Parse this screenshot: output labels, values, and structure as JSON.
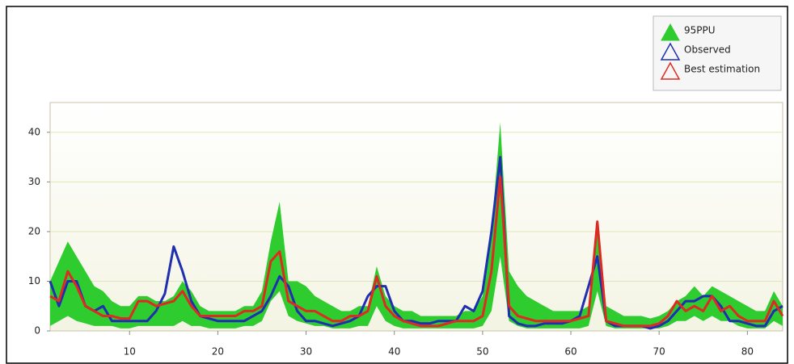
{
  "chart_data": {
    "type": "line",
    "x": [
      1,
      2,
      3,
      4,
      5,
      6,
      7,
      8,
      9,
      10,
      11,
      12,
      13,
      14,
      15,
      16,
      17,
      18,
      19,
      20,
      21,
      22,
      23,
      24,
      25,
      26,
      27,
      28,
      29,
      30,
      31,
      32,
      33,
      34,
      35,
      36,
      37,
      38,
      39,
      40,
      41,
      42,
      43,
      44,
      45,
      46,
      47,
      48,
      49,
      50,
      51,
      52,
      53,
      54,
      55,
      56,
      57,
      58,
      59,
      60,
      61,
      62,
      63,
      64,
      65,
      66,
      67,
      68,
      69,
      70,
      71,
      72,
      73,
      74,
      75,
      76,
      77,
      78,
      79,
      80,
      81,
      82,
      83,
      84
    ],
    "xlim": [
      1,
      84
    ],
    "xticks": [
      10,
      20,
      30,
      40,
      50,
      60,
      70,
      80
    ],
    "ylim": [
      0,
      46
    ],
    "yticks": [
      0,
      10,
      20,
      30,
      40
    ],
    "grid": true,
    "legend": "top-right",
    "series": [
      {
        "name": "95PPU",
        "color": "#2ecc2e",
        "upper": [
          10,
          14,
          18,
          15,
          12,
          9,
          8,
          6,
          5,
          5,
          7,
          7,
          6,
          6,
          7,
          10,
          8,
          5,
          4,
          4,
          4,
          4,
          5,
          5,
          8,
          18,
          26,
          10,
          10,
          9,
          7,
          6,
          5,
          4,
          4,
          5,
          5,
          13,
          7,
          5,
          4,
          4,
          3,
          3,
          3,
          3,
          3,
          4,
          4,
          7,
          20,
          42,
          12,
          9,
          7,
          6,
          5,
          4,
          4,
          4,
          4,
          5,
          22,
          5,
          4,
          3,
          3,
          3,
          2.5,
          3,
          4,
          6,
          7,
          9,
          7,
          9,
          8,
          7,
          6,
          5,
          4,
          4,
          8,
          5
        ],
        "lower": [
          1,
          2,
          3,
          2,
          1.5,
          1,
          1,
          1,
          0.5,
          0.5,
          1,
          1,
          1,
          1,
          1,
          2,
          1,
          1,
          0.5,
          0.5,
          0.5,
          0.5,
          1,
          1,
          2,
          6,
          8,
          3,
          2,
          1.5,
          1,
          1,
          0.5,
          0.5,
          0.5,
          1,
          1,
          5,
          2,
          1,
          0.5,
          0.5,
          0.5,
          0.5,
          0.5,
          0.5,
          0.5,
          0.5,
          0.5,
          1,
          4,
          15,
          2,
          1,
          0.5,
          0.5,
          0.5,
          0.5,
          0.5,
          0.5,
          0.5,
          1,
          8,
          1,
          0.5,
          0.5,
          0.5,
          0.5,
          0.5,
          0.5,
          1,
          2,
          2,
          3,
          2,
          3,
          2,
          2,
          1,
          0.5,
          0.5,
          0.5,
          2,
          1
        ]
      },
      {
        "name": "Observed",
        "color": "#1f2fb0",
        "values": [
          10,
          5,
          10,
          10,
          5,
          4,
          5,
          2,
          2,
          2,
          2,
          2,
          4,
          7.5,
          17,
          12,
          6,
          3,
          2.5,
          2,
          2,
          2,
          2,
          3,
          4,
          7,
          11,
          9,
          4,
          2,
          2,
          1.5,
          1,
          1.5,
          2,
          3,
          7,
          9,
          9,
          4,
          2,
          2,
          1.5,
          1.5,
          2,
          2,
          2,
          5,
          4,
          8,
          20,
          35,
          3,
          1.5,
          1,
          1,
          1.5,
          1.5,
          1.5,
          2,
          3,
          9,
          15,
          2,
          1,
          1,
          1,
          1,
          0.5,
          1,
          2,
          4,
          6,
          6,
          7,
          7,
          5,
          2,
          2,
          1.5,
          1,
          1,
          4,
          5
        ]
      },
      {
        "name": "Best estimation",
        "color": "#dd2a22",
        "values": [
          7,
          6,
          12,
          9,
          5,
          4,
          3,
          3,
          2.5,
          2.5,
          6,
          6,
          5,
          5.5,
          6,
          8,
          5,
          3,
          3,
          3,
          3,
          3,
          4,
          4,
          5,
          14,
          16,
          6,
          5,
          4,
          4,
          3,
          2,
          2,
          3,
          3,
          4,
          11,
          5,
          3,
          2,
          1.5,
          1,
          1,
          1,
          1.5,
          2,
          2,
          2,
          3,
          12,
          31,
          5,
          3,
          2.5,
          2,
          2,
          2,
          2,
          2,
          2.5,
          3,
          22,
          2,
          1.5,
          1,
          1,
          1,
          1,
          1.5,
          3,
          6,
          4,
          5,
          4,
          7,
          4,
          5,
          3,
          2,
          2,
          2,
          6,
          3
        ]
      }
    ]
  }
}
